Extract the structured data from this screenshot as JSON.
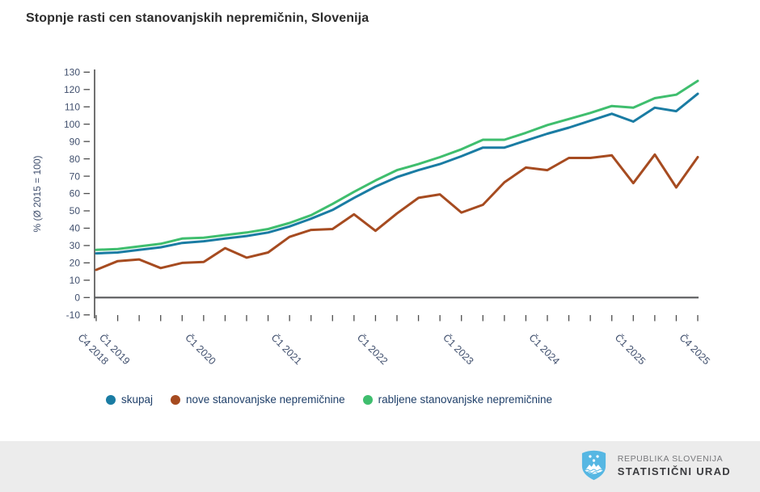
{
  "title": "Stopnje rasti cen stanovanjskih nepremičnin, Slovenija",
  "chart_data": {
    "type": "line",
    "title": "Stopnje rasti cen stanovanjskih nepremičnin, Slovenija",
    "xlabel": "",
    "ylabel": "% (Ø 2015 = 100)",
    "ylim": [
      -10,
      130
    ],
    "ytick_step": 10,
    "grid": false,
    "legend_position": "bottom",
    "categories": [
      "Č4 2018",
      "Č1 2019",
      "Č2 2019",
      "Č3 2019",
      "Č4 2019",
      "Č1 2020",
      "Č2 2020",
      "Č3 2020",
      "Č4 2020",
      "Č1 2021",
      "Č2 2021",
      "Č3 2021",
      "Č4 2021",
      "Č1 2022",
      "Č2 2022",
      "Č3 2022",
      "Č4 2022",
      "Č1 2023",
      "Č2 2023",
      "Č3 2023",
      "Č4 2023",
      "Č1 2024",
      "Č2 2024",
      "Č3 2024",
      "Č4 2024",
      "Č1 2025",
      "Č2 2025",
      "Č3 2025",
      "Č4 2025"
    ],
    "xtick_label_indices": [
      0,
      1,
      5,
      9,
      13,
      17,
      21,
      25,
      28
    ],
    "xtick_labels_shown": [
      "Č4 2018",
      "Č1 2019",
      "Č1 2020",
      "Č1 2021",
      "Č1 2022",
      "Č1 2023",
      "Č1 2024",
      "Č1 2025",
      "Č4 2025"
    ],
    "series": [
      {
        "name": "skupaj",
        "color": "#1a7ca3",
        "values": [
          25.5,
          26,
          27.5,
          29,
          31.5,
          32.5,
          34,
          35.5,
          37.5,
          41,
          45.5,
          50.5,
          57.5,
          64,
          69.5,
          73.5,
          77,
          81.5,
          86.5,
          86.5,
          90.5,
          94.5,
          98,
          102,
          106,
          101.5,
          109.5,
          107.5,
          117.5
        ]
      },
      {
        "name": "nove stanovanjske nepremičnine",
        "color": "#a64b20",
        "values": [
          16,
          21,
          22,
          17,
          20,
          20.5,
          28.5,
          23,
          26,
          35,
          39,
          39.5,
          48,
          38.5,
          48.5,
          57.5,
          59.5,
          49,
          53.5,
          66.5,
          75,
          73.5,
          80.5,
          80.5,
          82,
          66,
          82.5,
          63.5,
          81
        ]
      },
      {
        "name": "rabljene stanovanjske nepremičnine",
        "color": "#3fbe6e",
        "values": [
          27.5,
          28,
          29.5,
          31,
          34,
          34.5,
          36,
          37.5,
          39.5,
          43,
          47.5,
          54,
          61,
          67.5,
          73.5,
          77,
          81,
          85.5,
          91,
          91,
          95,
          99.5,
          103,
          106.5,
          110.5,
          109.5,
          115,
          117,
          125
        ]
      }
    ],
    "axis_colors": {
      "axis_line": "#4d4d4d",
      "zero_line": "#58595b",
      "tick_text": "#41506e"
    }
  },
  "footer": {
    "org_line1": "REPUBLIKA SLOVENIJA",
    "org_line2": "STATISTIČNI URAD",
    "logo": "slovenia-coat-of-arms",
    "logo_color": "#56b7e3"
  }
}
